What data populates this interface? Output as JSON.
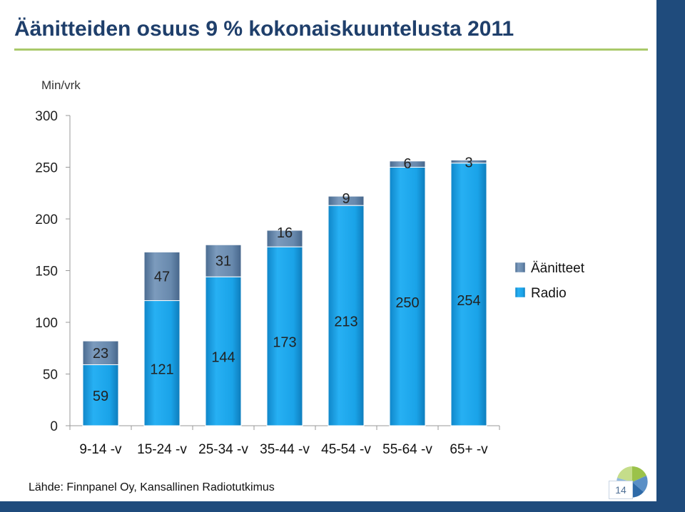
{
  "slide": {
    "title": "Äänitteiden osuus 9 % kokonaiskuuntelusta 2011",
    "unit_label": "Min/vrk",
    "source": "Lähde: Finnpanel Oy, Kansallinen Radiotutkimus",
    "page_number": "14",
    "accent_color": "#1f4b7c",
    "title_color": "#1f3f6b",
    "rule_color": "#a9c96a"
  },
  "chart_data": {
    "type": "bar",
    "stacked": true,
    "categories": [
      "9-14 -v",
      "15-24 -v",
      "25-34 -v",
      "35-44 -v",
      "45-54 -v",
      "55-64 -v",
      "65+ -v"
    ],
    "series": [
      {
        "name": "Radio",
        "values": [
          59,
          121,
          144,
          173,
          213,
          250,
          254
        ],
        "color": "#1aa3e8"
      },
      {
        "name": "Äänitteet",
        "values": [
          23,
          47,
          31,
          16,
          9,
          6,
          3
        ],
        "color": "#5e7fa3"
      }
    ],
    "y_ticks": [
      "0",
      "50",
      "100",
      "150",
      "200",
      "250",
      "300"
    ],
    "ylim": [
      0,
      300
    ],
    "legend": [
      "Äänitteet",
      "Radio"
    ],
    "legend_position": "right",
    "grid": false
  }
}
